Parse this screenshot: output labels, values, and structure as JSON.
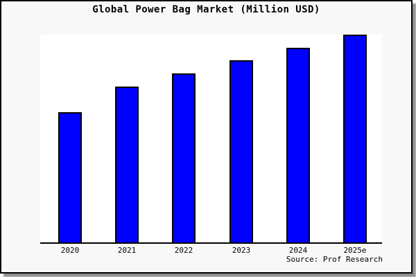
{
  "chart_data": {
    "type": "bar",
    "title": "Global Power Bag Market (Million USD)",
    "categories": [
      "2020",
      "2021",
      "2022",
      "2023",
      "2024",
      "2025e"
    ],
    "values": [
      62.7,
      74.9,
      81.3,
      87.7,
      93.7,
      100
    ],
    "value_note": "no y-axis ticks or data labels visible; values are relative bar heights as percent of tallest bar (2025e = 100)",
    "xlabel": "",
    "ylabel": "",
    "ylim": [
      0,
      100
    ],
    "grid": false,
    "legend": false,
    "source_note": "Source: Prof Research",
    "colors": {
      "bar_fill": "#0000ff",
      "bar_outline": "#000000",
      "plot_background": "#ffffff",
      "canvas_background": "#f8f8f8",
      "frame_border": "#000000",
      "axis_line": "#000000",
      "text": "#000000"
    }
  }
}
